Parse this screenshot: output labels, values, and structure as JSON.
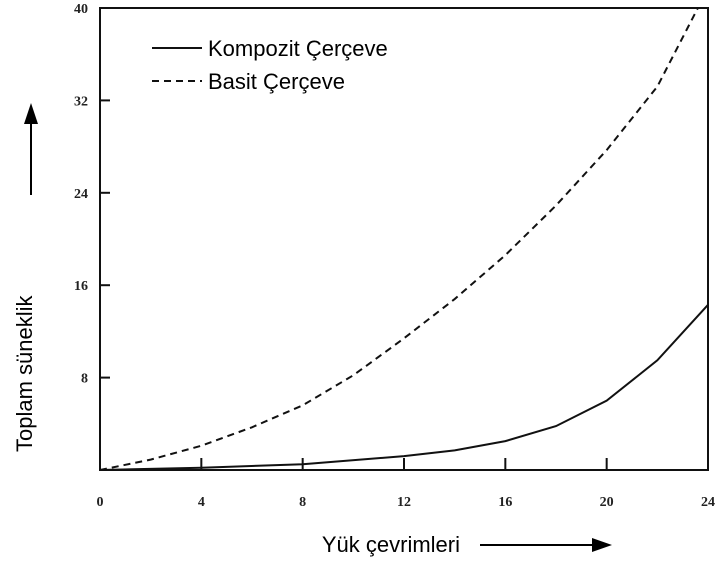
{
  "chart_data": {
    "type": "line",
    "xlabel": "Yük çevrimleri",
    "ylabel": "Toplam süneklik",
    "xlim": [
      0,
      24
    ],
    "xticks": [
      0,
      4,
      8,
      12,
      16,
      20,
      24
    ],
    "ylim": [
      0,
      40
    ],
    "yticks": [
      8,
      16,
      24,
      32,
      40
    ],
    "series": [
      {
        "name": "Kompozit Çerçeve",
        "color": "#111111",
        "dash": false,
        "x": [
          0,
          4,
          8,
          12,
          14,
          16,
          18,
          20,
          22,
          24
        ],
        "values": [
          0,
          0.2,
          0.5,
          1.2,
          1.7,
          2.5,
          3.8,
          6,
          9.5,
          14.3
        ]
      },
      {
        "name": "Basit Çerçeve",
        "color": "#111111",
        "dash": true,
        "x": [
          0,
          2,
          4,
          6,
          8,
          10,
          12,
          14,
          16,
          18,
          20,
          22,
          23.6
        ],
        "values": [
          0,
          0.9,
          2.1,
          3.7,
          5.6,
          8.2,
          11.4,
          14.8,
          18.6,
          22.9,
          27.7,
          33.2,
          40
        ]
      }
    ]
  }
}
